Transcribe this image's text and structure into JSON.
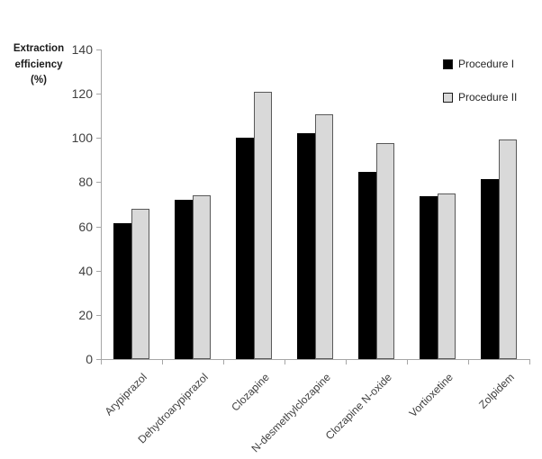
{
  "figure": {
    "background_color": "#ffffff",
    "axis_line_color": "#a6a6a6",
    "tick_label_color": "#3f3f3f",
    "category_label_color": "#3f3f3f",
    "legend_text_color": "#262626"
  },
  "chart_data": {
    "type": "bar",
    "title": "",
    "xlabel": "",
    "ylabel": "Extraction efficiency (%)",
    "ylabel_lines": "Extraction\nefficiency\n(%)",
    "ylim": [
      0,
      140
    ],
    "yticks": [
      0,
      20,
      40,
      60,
      80,
      100,
      120,
      140
    ],
    "grid": "off",
    "legend_position": "top-right",
    "categories": [
      "Arypiprazol",
      "Dehydroarypiprazol",
      "Clozapine",
      "N-desmethylclozapine",
      "Clozapine N-oxide",
      "Vortioxetine",
      "Zolpidem"
    ],
    "series": [
      {
        "name": "Procedure I",
        "color": "#000000",
        "values": [
          61.5,
          72,
          100,
          102,
          84.5,
          73.5,
          81.5
        ]
      },
      {
        "name": "Procedure II",
        "color": "#d9d9d9",
        "values": [
          68,
          74,
          121,
          110.5,
          97.5,
          75,
          99.5
        ]
      }
    ]
  }
}
